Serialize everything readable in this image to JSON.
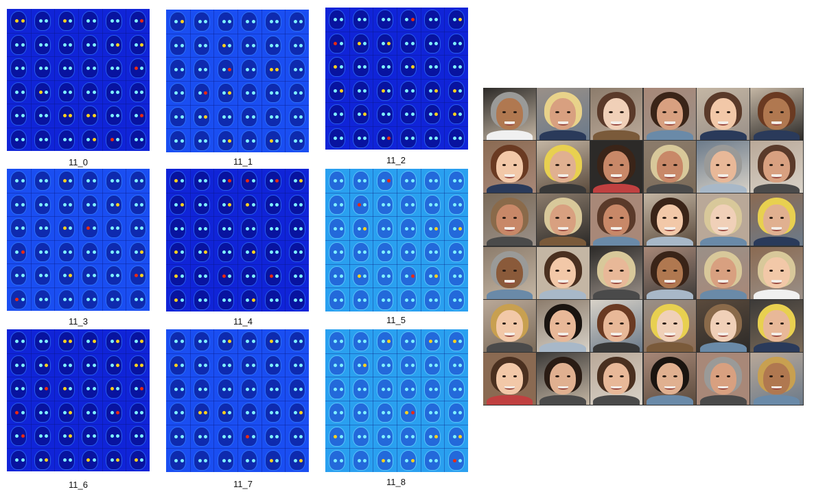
{
  "panels": [
    {
      "label": "11_0",
      "theme": "dark"
    },
    {
      "label": "11_1",
      "theme": "mid"
    },
    {
      "label": "11_2",
      "theme": "dark"
    },
    {
      "label": "11_3",
      "theme": "mid"
    },
    {
      "label": "11_4",
      "theme": "dark"
    },
    {
      "label": "11_5",
      "theme": "light"
    },
    {
      "label": "11_6",
      "theme": "dark"
    },
    {
      "label": "11_7",
      "theme": "mid"
    },
    {
      "label": "11_8",
      "theme": "light"
    }
  ],
  "colors": {
    "heat_dark": "#1024d8",
    "heat_mid": "#1a4ef2",
    "heat_light": "#2aa0f0",
    "heat_feature": "#7ff0ff",
    "heat_hot": "#ffd21e",
    "heat_hottest": "#e82a12",
    "page_background": "#ffffff"
  },
  "face_grid": {
    "rows": 6,
    "cols": 6
  }
}
